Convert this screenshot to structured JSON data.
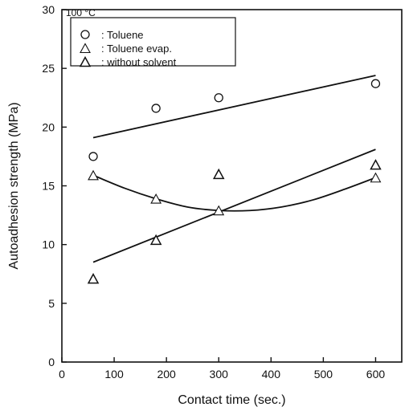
{
  "chart_data": {
    "type": "scatter",
    "xlabel": "Contact time (sec.)",
    "ylabel": "Autoadhesion strength (MPa)",
    "xlim": [
      0,
      650
    ],
    "ylim": [
      0,
      30
    ],
    "xticks": [
      0,
      100,
      200,
      300,
      400,
      500,
      600
    ],
    "yticks": [
      0,
      5,
      10,
      15,
      20,
      25,
      30
    ],
    "legend_title": "100 °C",
    "legend_position": "top-left",
    "series": [
      {
        "name": ": Toluene",
        "marker": "circle",
        "points": [
          {
            "x": 60,
            "y": 17.5
          },
          {
            "x": 180,
            "y": 21.6
          },
          {
            "x": 300,
            "y": 22.5
          },
          {
            "x": 600,
            "y": 23.7
          }
        ],
        "fit": {
          "kind": "linear",
          "line": [
            [
              60,
              19.1
            ],
            [
              600,
              24.4
            ]
          ]
        }
      },
      {
        "name": ": Toluene evap.",
        "marker": "triangle-open",
        "points": [
          {
            "x": 60,
            "y": 15.9
          },
          {
            "x": 180,
            "y": 13.9
          },
          {
            "x": 300,
            "y": 12.9
          },
          {
            "x": 600,
            "y": 15.7
          }
        ],
        "fit": {
          "kind": "curve",
          "line": [
            [
              60,
              15.9
            ],
            [
              120,
              14.8
            ],
            [
              180,
              13.9
            ],
            [
              240,
              13.2
            ],
            [
              300,
              12.9
            ],
            [
              360,
              12.9
            ],
            [
              420,
              13.2
            ],
            [
              480,
              13.8
            ],
            [
              540,
              14.7
            ],
            [
              600,
              15.7
            ]
          ]
        }
      },
      {
        "name": ": without solvent",
        "marker": "triangle-filled-style",
        "points": [
          {
            "x": 60,
            "y": 7.1
          },
          {
            "x": 180,
            "y": 10.4
          },
          {
            "x": 300,
            "y": 16.0
          },
          {
            "x": 600,
            "y": 16.8
          }
        ],
        "fit": {
          "kind": "linear",
          "line": [
            [
              60,
              8.5
            ],
            [
              600,
              18.1
            ]
          ]
        }
      }
    ]
  }
}
